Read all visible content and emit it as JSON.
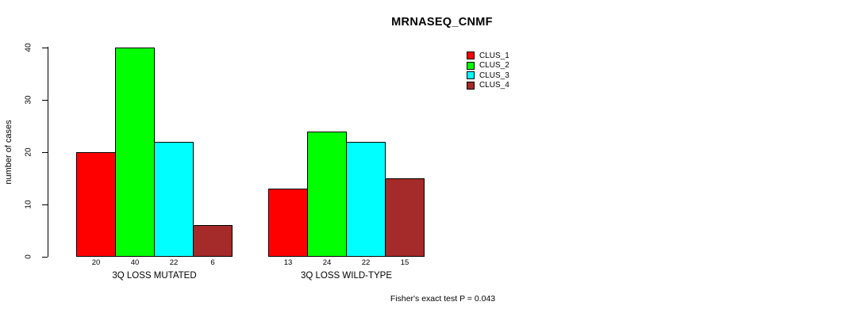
{
  "chart_data": {
    "type": "bar",
    "title": "MRNASEQ_CNMF",
    "xlabel": "",
    "ylabel": "number of cases",
    "ylim": [
      0,
      40
    ],
    "yticks": [
      0,
      10,
      20,
      30,
      40
    ],
    "grid": false,
    "legend_position": "top-right",
    "bar_value_labels_shown": true,
    "categories": [
      "3Q LOSS MUTATED",
      "3Q LOSS WILD-TYPE"
    ],
    "series": [
      {
        "name": "CLUS_1",
        "color": "#ff0000",
        "values": [
          20,
          13
        ]
      },
      {
        "name": "CLUS_2",
        "color": "#00ff00",
        "values": [
          40,
          24
        ]
      },
      {
        "name": "CLUS_3",
        "color": "#00ffff",
        "values": [
          22,
          22
        ]
      },
      {
        "name": "CLUS_4",
        "color": "#a52a2a",
        "values": [
          6,
          15
        ]
      }
    ],
    "annotation": "Fisher's exact test P = 0.043"
  }
}
